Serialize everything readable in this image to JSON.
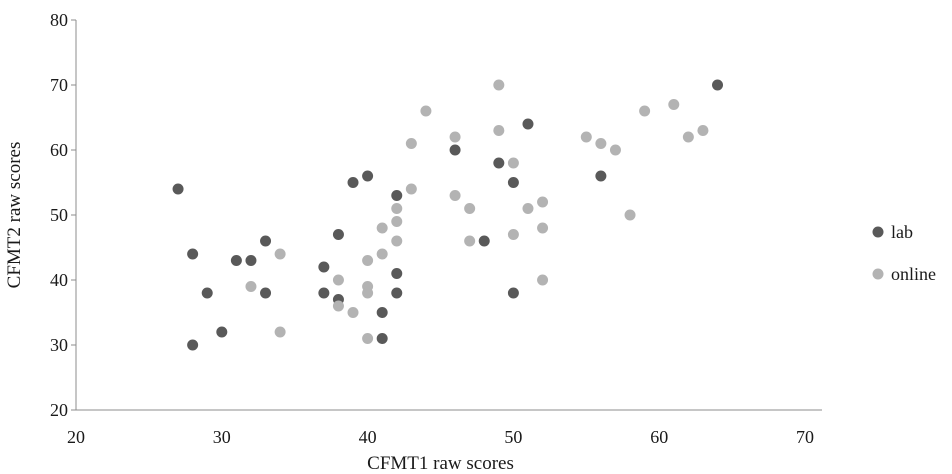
{
  "chart_data": {
    "type": "scatter",
    "xlabel": "CFMT1 raw scores",
    "ylabel": "CFMT2 raw scores",
    "xlim": [
      20,
      70
    ],
    "ylim": [
      20,
      80
    ],
    "xticks": [
      20,
      30,
      40,
      50,
      60,
      70
    ],
    "yticks": [
      20,
      30,
      40,
      50,
      60,
      70,
      80
    ],
    "grid": false,
    "legend_position": "right",
    "series": [
      {
        "name": "lab",
        "color": "#595959",
        "points": [
          [
            27,
            54
          ],
          [
            28,
            44
          ],
          [
            28,
            30
          ],
          [
            29,
            38
          ],
          [
            30,
            32
          ],
          [
            31,
            43
          ],
          [
            32,
            43
          ],
          [
            33,
            46
          ],
          [
            33,
            38
          ],
          [
            37,
            42
          ],
          [
            37,
            38
          ],
          [
            38,
            47
          ],
          [
            38,
            37
          ],
          [
            39,
            55
          ],
          [
            40,
            56
          ],
          [
            41,
            35
          ],
          [
            41,
            31
          ],
          [
            42,
            53
          ],
          [
            42,
            41
          ],
          [
            42,
            38
          ],
          [
            46,
            60
          ],
          [
            48,
            46
          ],
          [
            49,
            58
          ],
          [
            50,
            55
          ],
          [
            50,
            38
          ],
          [
            51,
            64
          ],
          [
            56,
            56
          ],
          [
            64,
            70
          ]
        ]
      },
      {
        "name": "online",
        "color": "#b3b3b3",
        "points": [
          [
            32,
            39
          ],
          [
            34,
            44
          ],
          [
            34,
            32
          ],
          [
            38,
            40
          ],
          [
            38,
            36
          ],
          [
            39,
            35
          ],
          [
            40,
            43
          ],
          [
            40,
            39
          ],
          [
            40,
            38
          ],
          [
            40,
            31
          ],
          [
            41,
            48
          ],
          [
            41,
            44
          ],
          [
            42,
            51
          ],
          [
            42,
            49
          ],
          [
            42,
            46
          ],
          [
            43,
            61
          ],
          [
            43,
            54
          ],
          [
            44,
            66
          ],
          [
            46,
            62
          ],
          [
            46,
            53
          ],
          [
            47,
            51
          ],
          [
            47,
            46
          ],
          [
            49,
            70
          ],
          [
            49,
            63
          ],
          [
            50,
            58
          ],
          [
            50,
            47
          ],
          [
            51,
            51
          ],
          [
            52,
            52
          ],
          [
            52,
            48
          ],
          [
            52,
            40
          ],
          [
            55,
            62
          ],
          [
            56,
            61
          ],
          [
            57,
            60
          ],
          [
            58,
            50
          ],
          [
            59,
            66
          ],
          [
            61,
            67
          ],
          [
            62,
            62
          ],
          [
            63,
            63
          ]
        ]
      }
    ]
  }
}
